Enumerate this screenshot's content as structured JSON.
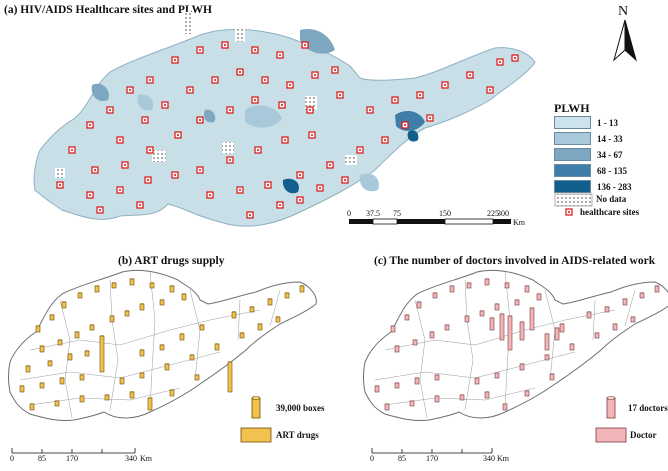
{
  "panel_a": {
    "title": "(a)  HIV/AIDS Healthcare sites and PLWH",
    "legend_title": "PLWH",
    "classes": [
      {
        "label": "1 - 13",
        "color": "#cde3ec"
      },
      {
        "label": "14 - 33",
        "color": "#a9c9da"
      },
      {
        "label": "34 - 67",
        "color": "#7ea8c2"
      },
      {
        "label": "68 - 135",
        "color": "#3f7ea8"
      },
      {
        "label": "136 - 283",
        "color": "#115f8c"
      }
    ],
    "no_data_label": "No data",
    "sites_label": "healthcare sites",
    "north_label": "N",
    "scale": {
      "ticks": [
        "0",
        "37.5",
        "75",
        "150",
        "225",
        "300"
      ],
      "unit": "Km"
    }
  },
  "panel_b": {
    "title": "(b)  ART drugs supply",
    "bar_legend_label": "39,000 boxes",
    "fill_legend_label": "ART drugs",
    "bar_color": "#f2c14e",
    "scale": {
      "ticks": [
        "0",
        "85",
        "170",
        "340"
      ],
      "unit": "Km"
    }
  },
  "panel_c": {
    "title": "(c)  The number of doctors involved in AIDS-related work",
    "bar_legend_label": "17 doctors",
    "fill_legend_label": "Doctor",
    "bar_color": "#f2b6b8",
    "scale": {
      "ticks": [
        "0",
        "85",
        "170",
        "340"
      ],
      "unit": "Km"
    }
  }
}
